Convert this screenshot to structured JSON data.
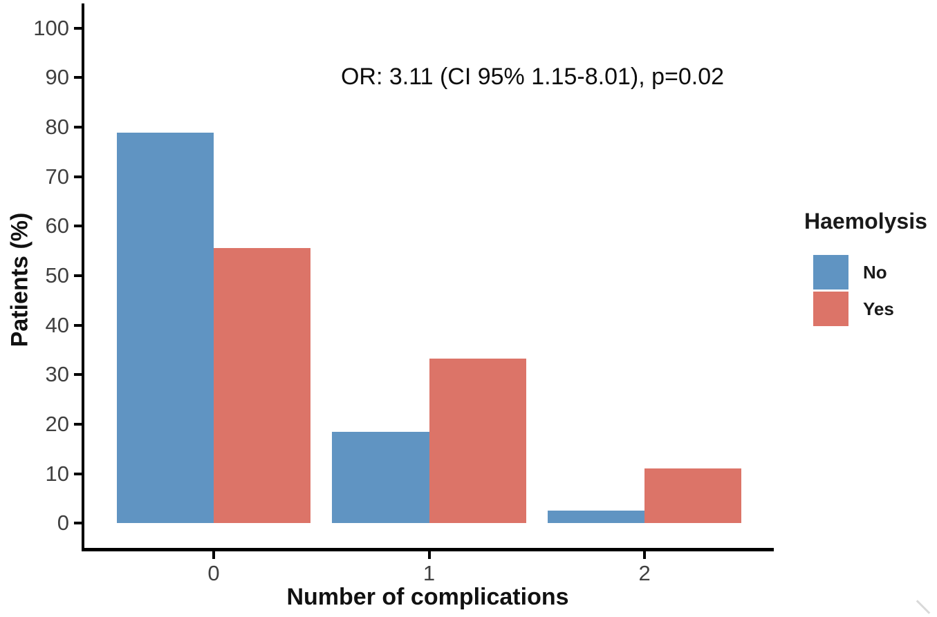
{
  "chart_data": {
    "type": "bar",
    "bar_mode": "grouped",
    "title": "",
    "annotation": "OR: 3.11 (CI 95% 1.15-8.01), p=0.02",
    "categories": [
      "0",
      "1",
      "2"
    ],
    "series": [
      {
        "name": "No",
        "color": "#6094C2",
        "values": [
          78.9,
          18.4,
          2.6
        ]
      },
      {
        "name": "Yes",
        "color": "#DC7468",
        "values": [
          55.6,
          33.3,
          11.1
        ]
      }
    ],
    "xlabel": "Number of complications",
    "ylabel": "Patients (%)",
    "ylim": [
      0,
      100
    ],
    "yticks": [
      0,
      10,
      20,
      30,
      40,
      50,
      60,
      70,
      80,
      90,
      100
    ],
    "grid": false,
    "legend": {
      "title": "Haemolysis",
      "position": "right",
      "entries": [
        "No",
        "Yes"
      ]
    }
  }
}
